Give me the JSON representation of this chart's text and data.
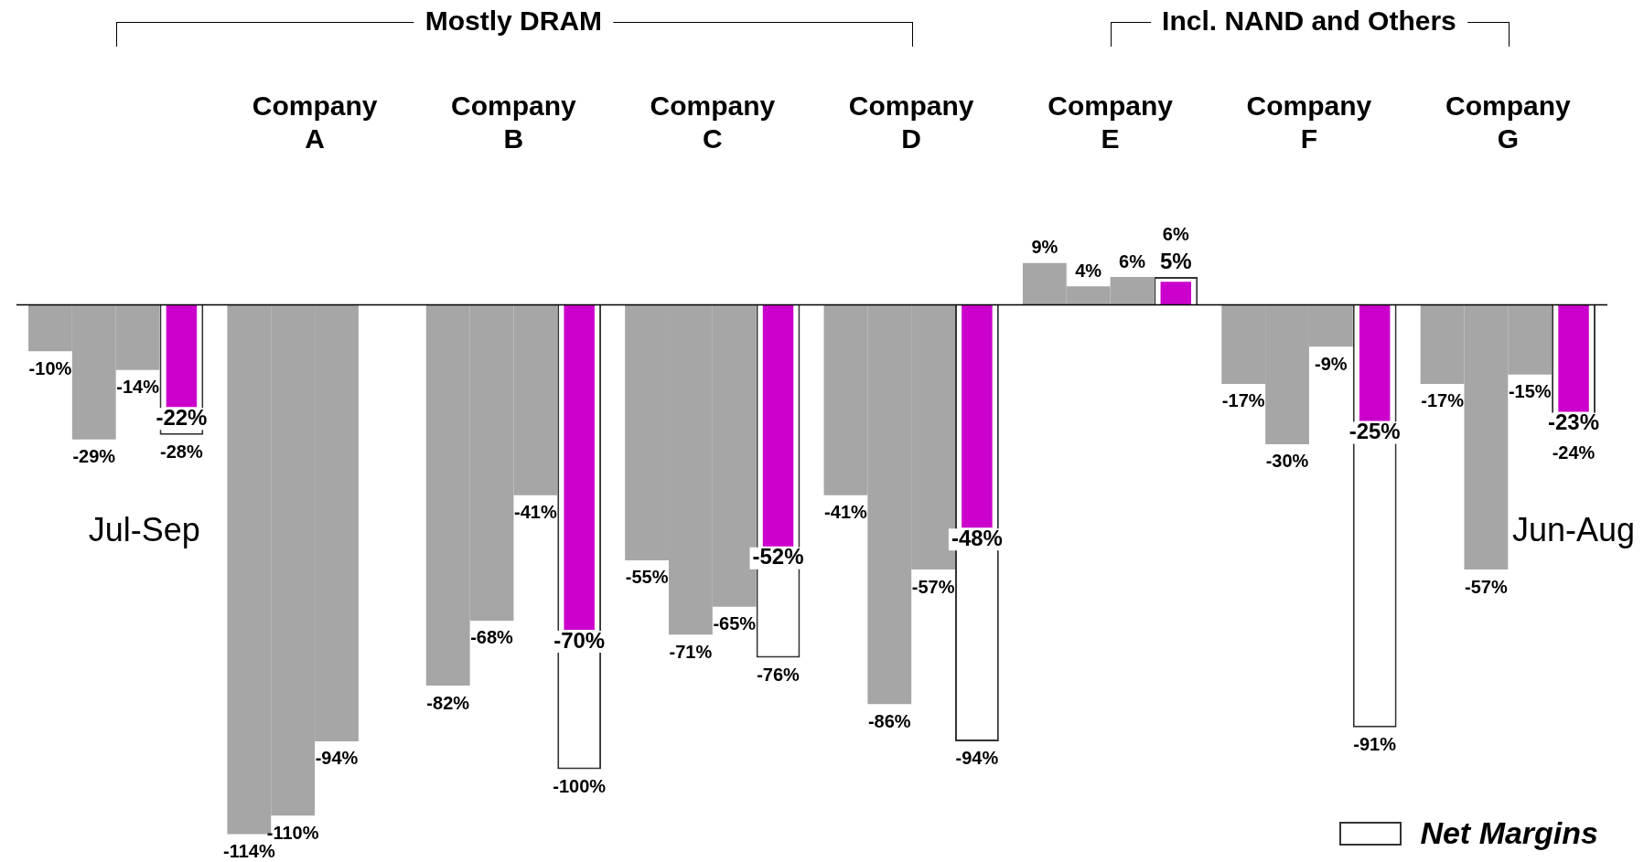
{
  "chart_data": {
    "type": "bar",
    "categories": [
      null,
      "Company A",
      "Company B",
      "Company C",
      "Company D",
      "Company E",
      "Company F",
      "Company G"
    ],
    "series": [
      {
        "color": "#a6a6a6",
        "values": [
          -10,
          -114,
          -82,
          -55,
          -41,
          9,
          -17,
          -17
        ],
        "value_labels": [
          "-10%",
          "-114%",
          "-82%",
          "-55%",
          "-41%",
          "9%",
          "-17%",
          "-17%"
        ]
      },
      {
        "color": "#a6a6a6",
        "values": [
          -29,
          -110,
          -68,
          -71,
          -86,
          4,
          -30,
          -57
        ],
        "value_labels": [
          "-29%",
          "-110%",
          "-68%",
          "-71%",
          "-86%",
          "4%",
          "-30%",
          "-57%"
        ]
      },
      {
        "color": "#a6a6a6",
        "values": [
          -14,
          -94,
          -41,
          -65,
          -57,
          6,
          -9,
          -15
        ],
        "value_labels": [
          "-14%",
          "-94%",
          "-41%",
          "-65%",
          "-57%",
          "6%",
          "-9%",
          "-15%"
        ]
      },
      {
        "name": "Net Margins",
        "color": "#ffffff",
        "values": [
          -28,
          null,
          -100,
          -76,
          -94,
          6,
          -91,
          -24
        ],
        "value_labels": [
          "-28%",
          null,
          "-100%",
          "-76%",
          "-94%",
          "6%",
          "-91%",
          "-24%"
        ]
      },
      {
        "color": "#cc00cc",
        "values": [
          -22,
          null,
          -70,
          -52,
          -48,
          5,
          -25,
          -23
        ],
        "value_labels": [
          "-22%",
          null,
          "-70%",
          "-52%",
          "-48%",
          "5%",
          "-25%",
          "-23%"
        ]
      }
    ],
    "annotations": [
      "Mostly DRAM",
      "Incl. NAND and Others",
      "Jul-Sep",
      "Jun-Aug"
    ],
    "legend": "bottom right",
    "grid": false
  }
}
